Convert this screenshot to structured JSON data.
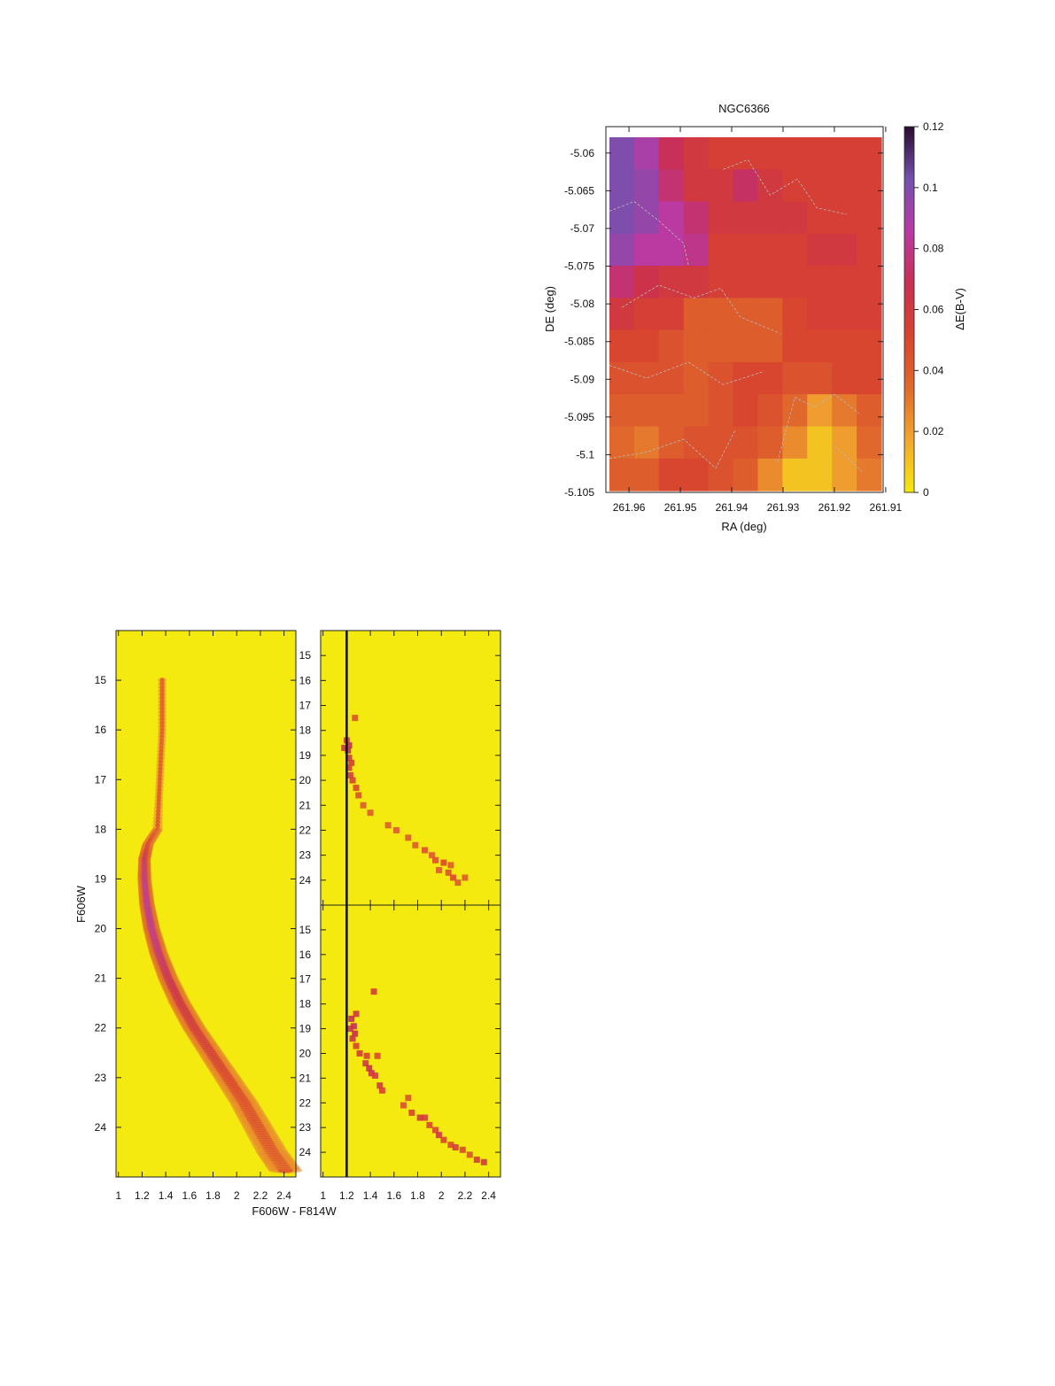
{
  "colors": {
    "scale": [
      "#f5e90e",
      "#f2a72e",
      "#e06a2c",
      "#d8432f",
      "#c92f52",
      "#b93aa5",
      "#7451ad",
      "#2a0b2f"
    ],
    "background": "#f4ea10",
    "contour": "#b8b8b8"
  },
  "chart_data": [
    {
      "type": "heatmap",
      "title": "NGC6366",
      "xlabel": "RA (deg)",
      "ylabel": "DE (deg)",
      "colorbar_label": "ΔE(B-V)",
      "xlim": [
        261.9645,
        261.9105
      ],
      "ylim": [
        -5.105,
        -5.0565
      ],
      "x_ticks": [
        "261.96",
        "261.95",
        "261.94",
        "261.93",
        "261.92",
        "261.91"
      ],
      "x_tick_values": [
        261.96,
        261.95,
        261.94,
        261.93,
        261.92,
        261.91
      ],
      "y_ticks": [
        "-5.06",
        "-5.065",
        "-5.07",
        "-5.075",
        "-5.08",
        "-5.085",
        "-5.09",
        "-5.095",
        "-5.1",
        "-5.105"
      ],
      "y_tick_values": [
        -5.06,
        -5.065,
        -5.07,
        -5.075,
        -5.08,
        -5.085,
        -5.09,
        -5.095,
        -5.1,
        -5.105
      ],
      "colorbar_ticks": [
        "0.12",
        "0.1",
        "0.08",
        "0.06",
        "0.04",
        "0.02",
        "0"
      ],
      "colorbar_tick_values": [
        0.12,
        0.1,
        0.08,
        0.06,
        0.04,
        0.02,
        0
      ],
      "colorbar_range": [
        0,
        0.12
      ],
      "grid": [
        [
          0.1,
          0.09,
          0.07,
          0.06,
          0.055,
          0.055,
          0.055,
          0.055,
          0.055,
          0.055,
          0.055
        ],
        [
          0.1,
          0.095,
          0.075,
          0.06,
          0.06,
          0.072,
          0.06,
          0.055,
          0.055,
          0.055,
          0.055
        ],
        [
          0.1,
          0.095,
          0.085,
          0.075,
          0.06,
          0.06,
          0.06,
          0.06,
          0.055,
          0.055,
          0.055
        ],
        [
          0.095,
          0.085,
          0.085,
          0.08,
          0.055,
          0.055,
          0.055,
          0.055,
          0.06,
          0.06,
          0.055
        ],
        [
          0.075,
          0.065,
          0.06,
          0.06,
          0.055,
          0.055,
          0.055,
          0.055,
          0.055,
          0.055,
          0.055
        ],
        [
          0.06,
          0.055,
          0.055,
          0.04,
          0.04,
          0.04,
          0.04,
          0.05,
          0.055,
          0.055,
          0.055
        ],
        [
          0.05,
          0.05,
          0.045,
          0.04,
          0.04,
          0.04,
          0.04,
          0.05,
          0.05,
          0.05,
          0.05
        ],
        [
          0.045,
          0.045,
          0.045,
          0.04,
          0.045,
          0.05,
          0.05,
          0.045,
          0.045,
          0.05,
          0.05
        ],
        [
          0.04,
          0.04,
          0.04,
          0.04,
          0.045,
          0.05,
          0.045,
          0.035,
          0.02,
          0.03,
          0.04
        ],
        [
          0.035,
          0.03,
          0.04,
          0.045,
          0.045,
          0.045,
          0.04,
          0.025,
          0.01,
          0.02,
          0.035
        ],
        [
          0.04,
          0.04,
          0.05,
          0.05,
          0.045,
          0.04,
          0.025,
          0.01,
          0.01,
          0.02,
          0.03
        ]
      ]
    },
    {
      "type": "heatmap",
      "subtype": "hess-diagram",
      "xlabel": "F606W - F814W",
      "ylabel": "F606W",
      "xlim": [
        0.98,
        2.5
      ],
      "ylim": [
        25,
        14
      ],
      "x_ticks": [
        "1",
        "1.2",
        "1.4",
        "1.6",
        "1.8",
        "2",
        "2.2",
        "2.4"
      ],
      "x_tick_values": [
        1,
        1.2,
        1.4,
        1.6,
        1.8,
        2,
        2.2,
        2.4
      ],
      "y_ticks": [
        "15",
        "16",
        "17",
        "18",
        "19",
        "20",
        "21",
        "22",
        "23",
        "24"
      ],
      "y_tick_values": [
        15,
        16,
        17,
        18,
        19,
        20,
        21,
        22,
        23,
        24
      ],
      "ridge": [
        {
          "color": 1.37,
          "mag": 15.0,
          "density": 0.1
        },
        {
          "color": 1.37,
          "mag": 16.0,
          "density": 0.1
        },
        {
          "color": 1.35,
          "mag": 17.0,
          "density": 0.12
        },
        {
          "color": 1.33,
          "mag": 18.0,
          "density": 0.16
        },
        {
          "color": 1.25,
          "mag": 18.3,
          "density": 0.35
        },
        {
          "color": 1.22,
          "mag": 18.6,
          "density": 0.75
        },
        {
          "color": 1.22,
          "mag": 19.0,
          "density": 0.95
        },
        {
          "color": 1.24,
          "mag": 19.5,
          "density": 1.0
        },
        {
          "color": 1.28,
          "mag": 20.0,
          "density": 0.98
        },
        {
          "color": 1.34,
          "mag": 20.5,
          "density": 0.85
        },
        {
          "color": 1.42,
          "mag": 21.0,
          "density": 0.7
        },
        {
          "color": 1.52,
          "mag": 21.5,
          "density": 0.62
        },
        {
          "color": 1.64,
          "mag": 22.0,
          "density": 0.52
        },
        {
          "color": 1.78,
          "mag": 22.5,
          "density": 0.42
        },
        {
          "color": 1.92,
          "mag": 23.0,
          "density": 0.32
        },
        {
          "color": 2.06,
          "mag": 23.5,
          "density": 0.24
        },
        {
          "color": 2.18,
          "mag": 24.0,
          "density": 0.18
        },
        {
          "color": 2.3,
          "mag": 24.5,
          "density": 0.14
        },
        {
          "color": 2.42,
          "mag": 24.9,
          "density": 0.1
        }
      ]
    },
    {
      "type": "scatter",
      "subtype": "hess-diagram",
      "xlim": [
        0.98,
        2.5
      ],
      "ylim": [
        25,
        14
      ],
      "x_ticks": [
        "1",
        "1.2",
        "1.4",
        "1.6",
        "1.8",
        "2",
        "2.2",
        "2.4"
      ],
      "x_tick_values": [
        1,
        1.2,
        1.4,
        1.6,
        1.8,
        2,
        2.2,
        2.4
      ],
      "y_ticks": [
        "15",
        "16",
        "17",
        "18",
        "19",
        "20",
        "21",
        "22",
        "23",
        "24"
      ],
      "y_tick_values": [
        15,
        16,
        17,
        18,
        19,
        20,
        21,
        22,
        23,
        24
      ],
      "reference_line_color": 1.2,
      "points": [
        {
          "x": 1.27,
          "y": 17.5,
          "d": 0.4
        },
        {
          "x": 1.2,
          "y": 18.4,
          "d": 0.6
        },
        {
          "x": 1.22,
          "y": 18.6,
          "d": 1.0
        },
        {
          "x": 1.18,
          "y": 18.7,
          "d": 0.9
        },
        {
          "x": 1.21,
          "y": 18.8,
          "d": 1.0
        },
        {
          "x": 1.22,
          "y": 19.1,
          "d": 0.8
        },
        {
          "x": 1.24,
          "y": 19.3,
          "d": 0.7
        },
        {
          "x": 1.22,
          "y": 19.5,
          "d": 0.6
        },
        {
          "x": 1.23,
          "y": 19.8,
          "d": 0.7
        },
        {
          "x": 1.25,
          "y": 20.0,
          "d": 0.6
        },
        {
          "x": 1.28,
          "y": 20.3,
          "d": 0.5
        },
        {
          "x": 1.3,
          "y": 20.6,
          "d": 0.4
        },
        {
          "x": 1.34,
          "y": 21.0,
          "d": 0.3
        },
        {
          "x": 1.4,
          "y": 21.3,
          "d": 0.3
        },
        {
          "x": 1.55,
          "y": 21.8,
          "d": 0.3
        },
        {
          "x": 1.62,
          "y": 22.0,
          "d": 0.3
        },
        {
          "x": 1.72,
          "y": 22.3,
          "d": 0.3
        },
        {
          "x": 1.78,
          "y": 22.6,
          "d": 0.3
        },
        {
          "x": 1.86,
          "y": 22.8,
          "d": 0.4
        },
        {
          "x": 1.92,
          "y": 23.0,
          "d": 0.3
        },
        {
          "x": 1.95,
          "y": 23.2,
          "d": 0.4
        },
        {
          "x": 2.02,
          "y": 23.3,
          "d": 0.5
        },
        {
          "x": 2.08,
          "y": 23.4,
          "d": 0.3
        },
        {
          "x": 1.98,
          "y": 23.6,
          "d": 0.3
        },
        {
          "x": 2.06,
          "y": 23.7,
          "d": 0.4
        },
        {
          "x": 2.1,
          "y": 23.9,
          "d": 0.5
        },
        {
          "x": 2.14,
          "y": 24.1,
          "d": 0.3
        },
        {
          "x": 2.2,
          "y": 23.9,
          "d": 0.3
        }
      ]
    },
    {
      "type": "scatter",
      "subtype": "hess-diagram",
      "xlim": [
        0.98,
        2.5
      ],
      "ylim": [
        25,
        14
      ],
      "x_ticks": [
        "1",
        "1.2",
        "1.4",
        "1.6",
        "1.8",
        "2",
        "2.2",
        "2.4"
      ],
      "x_tick_values": [
        1,
        1.2,
        1.4,
        1.6,
        1.8,
        2,
        2.2,
        2.4
      ],
      "y_ticks": [
        "15",
        "16",
        "17",
        "18",
        "19",
        "20",
        "21",
        "22",
        "23",
        "24"
      ],
      "y_tick_values": [
        15,
        16,
        17,
        18,
        19,
        20,
        21,
        22,
        23,
        24
      ],
      "reference_line_color": 1.2,
      "points": [
        {
          "x": 1.43,
          "y": 17.5,
          "d": 0.7
        },
        {
          "x": 1.28,
          "y": 18.4,
          "d": 0.8
        },
        {
          "x": 1.24,
          "y": 18.6,
          "d": 1.0
        },
        {
          "x": 1.26,
          "y": 18.9,
          "d": 1.0
        },
        {
          "x": 1.23,
          "y": 19.0,
          "d": 0.9
        },
        {
          "x": 1.27,
          "y": 19.2,
          "d": 1.0
        },
        {
          "x": 1.25,
          "y": 19.4,
          "d": 0.9
        },
        {
          "x": 1.28,
          "y": 19.7,
          "d": 0.6
        },
        {
          "x": 1.31,
          "y": 20.0,
          "d": 0.7
        },
        {
          "x": 1.37,
          "y": 20.1,
          "d": 0.6
        },
        {
          "x": 1.46,
          "y": 20.1,
          "d": 0.5
        },
        {
          "x": 1.36,
          "y": 20.4,
          "d": 0.8
        },
        {
          "x": 1.39,
          "y": 20.6,
          "d": 1.0
        },
        {
          "x": 1.41,
          "y": 20.8,
          "d": 0.9
        },
        {
          "x": 1.44,
          "y": 20.9,
          "d": 0.7
        },
        {
          "x": 1.48,
          "y": 21.3,
          "d": 0.8
        },
        {
          "x": 1.5,
          "y": 21.5,
          "d": 0.6
        },
        {
          "x": 1.72,
          "y": 21.8,
          "d": 0.4
        },
        {
          "x": 1.68,
          "y": 22.1,
          "d": 0.4
        },
        {
          "x": 1.75,
          "y": 22.4,
          "d": 0.6
        },
        {
          "x": 1.82,
          "y": 22.6,
          "d": 0.8
        },
        {
          "x": 1.86,
          "y": 22.6,
          "d": 0.7
        },
        {
          "x": 1.9,
          "y": 22.9,
          "d": 0.5
        },
        {
          "x": 1.95,
          "y": 23.1,
          "d": 0.5
        },
        {
          "x": 1.98,
          "y": 23.3,
          "d": 0.8
        },
        {
          "x": 2.02,
          "y": 23.5,
          "d": 0.6
        },
        {
          "x": 2.08,
          "y": 23.7,
          "d": 0.5
        },
        {
          "x": 2.12,
          "y": 23.8,
          "d": 0.7
        },
        {
          "x": 2.18,
          "y": 23.9,
          "d": 0.5
        },
        {
          "x": 2.24,
          "y": 24.1,
          "d": 0.4
        },
        {
          "x": 2.3,
          "y": 24.3,
          "d": 0.7
        },
        {
          "x": 2.36,
          "y": 24.4,
          "d": 0.8
        }
      ]
    }
  ]
}
